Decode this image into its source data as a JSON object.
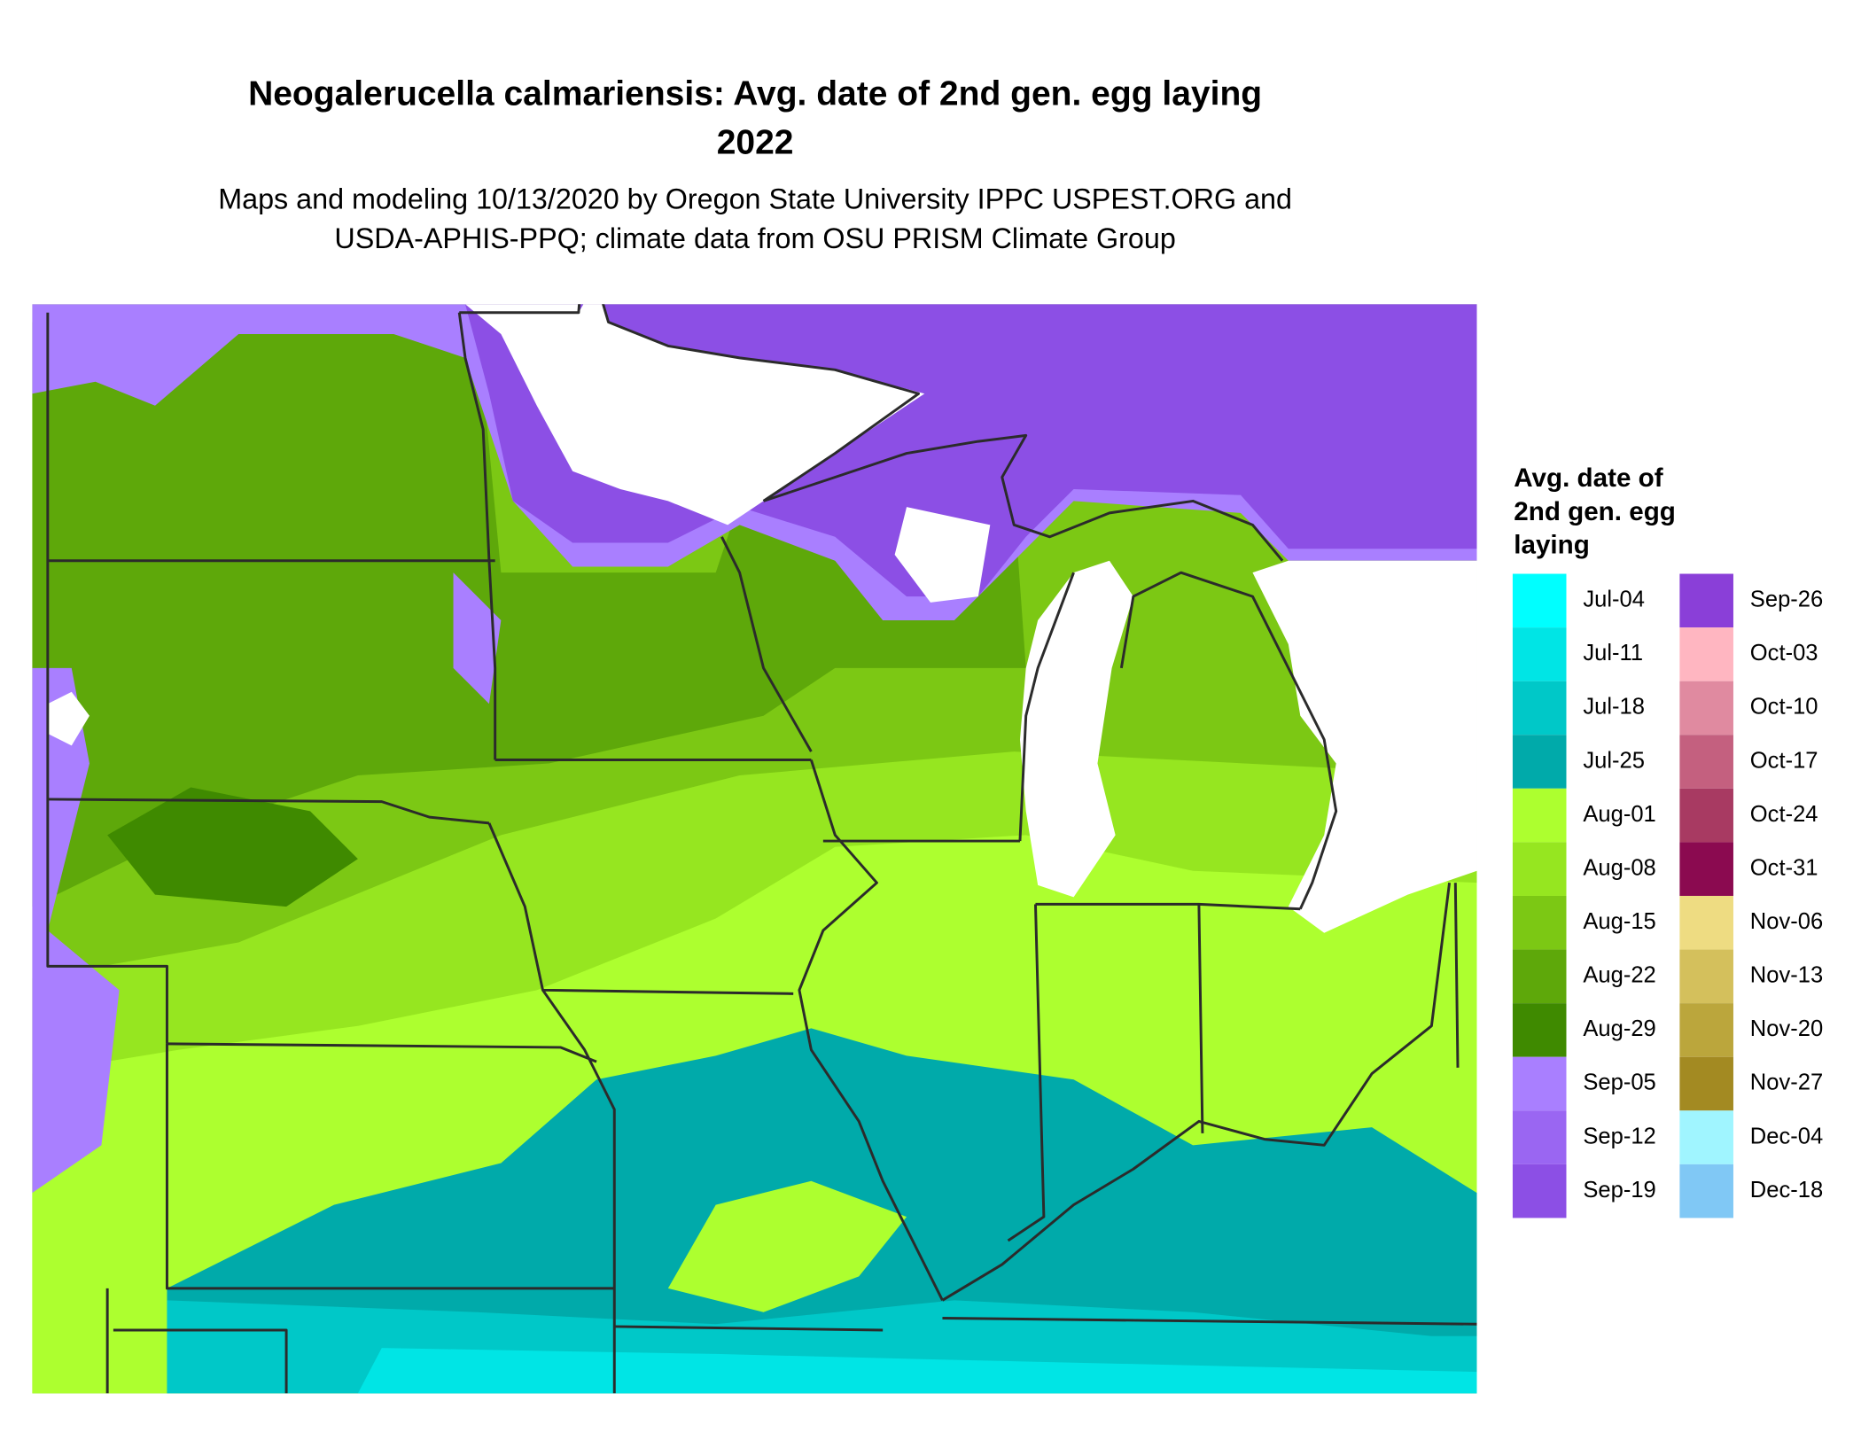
{
  "header": {
    "title_lines": [
      "Neogalerucella calmariensis: Avg. date of 2nd gen. egg laying",
      "2022"
    ],
    "subtitle_lines": [
      "Maps and modeling 10/13/2020 by Oregon State University IPPC USPEST.ORG and",
      "USDA-APHIS-PPQ; climate data from OSU PRISM Climate Group"
    ]
  },
  "legend": {
    "title_lines": [
      "Avg. date of",
      "2nd gen. egg",
      "laying"
    ],
    "items": [
      {
        "label": "Jul-04",
        "color": "#00FFFF"
      },
      {
        "label": "Jul-11",
        "color": "#00E5E5"
      },
      {
        "label": "Jul-18",
        "color": "#00C8C8"
      },
      {
        "label": "Jul-25",
        "color": "#00AAAA"
      },
      {
        "label": "Aug-01",
        "color": "#ADFF2F"
      },
      {
        "label": "Aug-08",
        "color": "#96E620"
      },
      {
        "label": "Aug-15",
        "color": "#7CC814"
      },
      {
        "label": "Aug-22",
        "color": "#5EA80A"
      },
      {
        "label": "Aug-29",
        "color": "#3F8A00"
      },
      {
        "label": "Sep-05",
        "color": "#A97FFF"
      },
      {
        "label": "Sep-12",
        "color": "#9A66F2"
      },
      {
        "label": "Sep-19",
        "color": "#8C4FE5"
      },
      {
        "label": "Sep-26",
        "color": "#8A3FD8"
      },
      {
        "label": "Oct-03",
        "color": "#FFB6C1"
      },
      {
        "label": "Oct-10",
        "color": "#E08AA0"
      },
      {
        "label": "Oct-17",
        "color": "#C4607F"
      },
      {
        "label": "Oct-24",
        "color": "#A83A62"
      },
      {
        "label": "Oct-31",
        "color": "#8B0A50"
      },
      {
        "label": "Nov-06",
        "color": "#EEDC82"
      },
      {
        "label": "Nov-13",
        "color": "#D4C05C"
      },
      {
        "label": "Nov-20",
        "color": "#BBA63C"
      },
      {
        "label": "Nov-27",
        "color": "#A38A22"
      },
      {
        "label": "Dec-04",
        "color": "#A0F5FF"
      },
      {
        "label": "Dec-18",
        "color": "#80C8F5"
      }
    ]
  }
}
